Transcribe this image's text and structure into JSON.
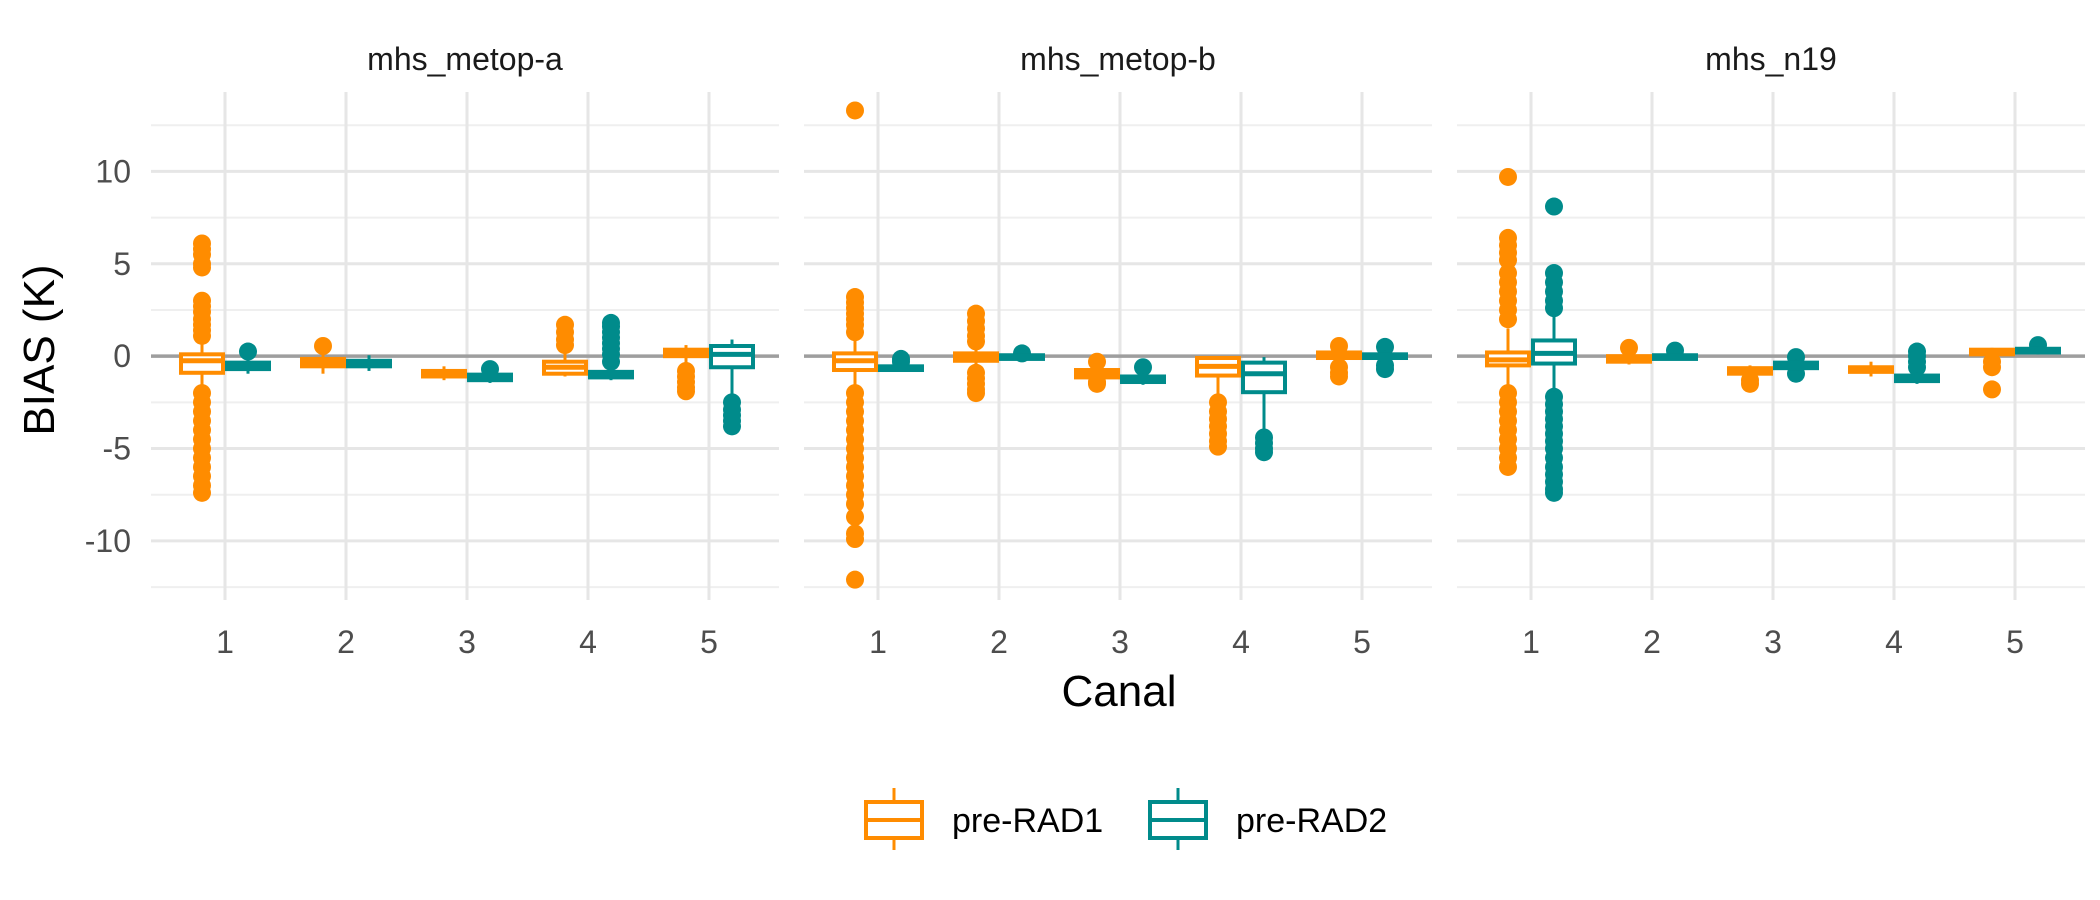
{
  "chart_data": {
    "type": "box",
    "xlabel": "Canal",
    "ylabel": "BIAS (K)",
    "ylim": [
      -13.2,
      14.3
    ],
    "y_ticks": [
      10,
      5,
      0,
      -5,
      -10
    ],
    "y_tick_labels": [
      "10",
      "5",
      "0",
      "-5",
      "-10"
    ],
    "categories": [
      "1",
      "2",
      "3",
      "4",
      "5"
    ],
    "reference_line": 0,
    "grid": true,
    "legend_position": "bottom",
    "colors": {
      "pre-RAD1": "#FF8C00",
      "pre-RAD2": "#008B8B",
      "zero_line": "#9e9e9e"
    },
    "series_names": [
      "pre-RAD1",
      "pre-RAD2"
    ],
    "panels": [
      {
        "title": "mhs_metop-a",
        "series": [
          {
            "name": "pre-RAD1",
            "boxes": [
              {
                "category": "1",
                "q1": -0.9,
                "median": -0.25,
                "q3": 0.1,
                "whisker_low": -1.9,
                "whisker_high": 1.0,
                "outliers": [
                  6.1,
                  5.8,
                  5.5,
                  5.0,
                  4.8,
                  3.0,
                  2.7,
                  2.4,
                  2.0,
                  1.7,
                  1.4,
                  1.1,
                  -2.0,
                  -2.5,
                  -3.0,
                  -3.5,
                  -4.0,
                  -4.5,
                  -5.0,
                  -5.5,
                  -6.0,
                  -6.5,
                  -7.0,
                  -7.4
                ]
              },
              {
                "category": "2",
                "q1": -0.55,
                "median": -0.35,
                "q3": -0.15,
                "whisker_low": -0.95,
                "whisker_high": 0.2,
                "outliers": [
                  0.55
                ]
              },
              {
                "category": "3",
                "q1": -1.1,
                "median": -0.95,
                "q3": -0.8,
                "whisker_low": -1.3,
                "whisker_high": -0.55,
                "outliers": []
              },
              {
                "category": "4",
                "q1": -0.95,
                "median": -0.6,
                "q3": -0.3,
                "whisker_low": -1.1,
                "whisker_high": 0.2,
                "outliers": [
                  0.6,
                  0.9,
                  1.3,
                  1.7
                ]
              },
              {
                "category": "5",
                "q1": 0.0,
                "median": 0.2,
                "q3": 0.35,
                "whisker_low": -0.5,
                "whisker_high": 0.6,
                "outliers": [
                  -0.8,
                  -1.1,
                  -1.4,
                  -1.7,
                  -1.9
                ]
              }
            ]
          },
          {
            "name": "pre-RAD2",
            "boxes": [
              {
                "category": "1",
                "q1": -0.7,
                "median": -0.55,
                "q3": -0.35,
                "whisker_low": -0.95,
                "whisker_high": -0.1,
                "outliers": [
                  0.25
                ]
              },
              {
                "category": "2",
                "q1": -0.55,
                "median": -0.4,
                "q3": -0.25,
                "whisker_low": -0.8,
                "whisker_high": 0.05,
                "outliers": []
              },
              {
                "category": "3",
                "q1": -1.3,
                "median": -1.15,
                "q3": -1.0,
                "whisker_low": -1.45,
                "whisker_high": -0.85,
                "outliers": [
                  -0.7
                ]
              },
              {
                "category": "4",
                "q1": -1.15,
                "median": -1.0,
                "q3": -0.85,
                "whisker_low": -1.3,
                "whisker_high": -0.55,
                "outliers": [
                  -0.3,
                  0.1,
                  0.4,
                  0.7,
                  1.0,
                  1.3,
                  1.6,
                  1.8
                ]
              },
              {
                "category": "5",
                "q1": -0.6,
                "median": 0.1,
                "q3": 0.55,
                "whisker_low": -2.1,
                "whisker_high": 0.9,
                "outliers": [
                  -2.5,
                  -2.9,
                  -3.2,
                  -3.5,
                  -3.8
                ]
              }
            ]
          }
        ]
      },
      {
        "title": "mhs_metop-b",
        "series": [
          {
            "name": "pre-RAD1",
            "boxes": [
              {
                "category": "1",
                "q1": -0.75,
                "median": -0.25,
                "q3": 0.15,
                "whisker_low": -1.8,
                "whisker_high": 1.0,
                "outliers": [
                  13.3,
                  3.2,
                  2.9,
                  2.6,
                  2.3,
                  2.0,
                  1.7,
                  1.3,
                  -2.0,
                  -2.5,
                  -3.0,
                  -3.5,
                  -4.0,
                  -4.5,
                  -5.0,
                  -5.5,
                  -6.0,
                  -6.5,
                  -7.0,
                  -7.5,
                  -8.0,
                  -8.7,
                  -9.6,
                  -9.9,
                  -12.1
                ]
              },
              {
                "category": "2",
                "q1": -0.25,
                "median": -0.05,
                "q3": 0.15,
                "whisker_low": -0.7,
                "whisker_high": 0.6,
                "outliers": [
                  2.3,
                  1.9,
                  1.5,
                  1.1,
                  0.8,
                  -0.9,
                  -1.2,
                  -1.5,
                  -1.8,
                  -2.0
                ]
              },
              {
                "category": "3",
                "q1": -1.15,
                "median": -0.95,
                "q3": -0.75,
                "whisker_low": -1.3,
                "whisker_high": -0.5,
                "outliers": [
                  -0.3,
                  -1.4,
                  -1.5
                ]
              },
              {
                "category": "4",
                "q1": -1.05,
                "median": -0.55,
                "q3": -0.1,
                "whisker_low": -2.2,
                "whisker_high": 0.0,
                "outliers": [
                  -2.5,
                  -3.0,
                  -3.4,
                  -3.8,
                  -4.2,
                  -4.6,
                  -4.9
                ]
              },
              {
                "category": "5",
                "q1": -0.1,
                "median": 0.05,
                "q3": 0.2,
                "whisker_low": -0.3,
                "whisker_high": 0.4,
                "outliers": [
                  0.55,
                  -0.6,
                  -0.9,
                  -1.1
                ]
              }
            ]
          },
          {
            "name": "pre-RAD2",
            "boxes": [
              {
                "category": "1",
                "q1": -0.75,
                "median": -0.65,
                "q3": -0.55,
                "whisker_low": -0.8,
                "whisker_high": -0.4,
                "outliers": [
                  -0.15,
                  -0.3
                ]
              },
              {
                "category": "2",
                "q1": -0.15,
                "median": -0.05,
                "q3": 0.05,
                "whisker_low": -0.2,
                "whisker_high": 0.1,
                "outliers": [
                  0.15
                ]
              },
              {
                "category": "3",
                "q1": -1.4,
                "median": -1.25,
                "q3": -1.1,
                "whisker_low": -1.55,
                "whisker_high": -0.95,
                "outliers": [
                  -0.6
                ]
              },
              {
                "category": "4",
                "q1": -1.95,
                "median": -0.95,
                "q3": -0.35,
                "whisker_low": -4.1,
                "whisker_high": -0.05,
                "outliers": [
                  -4.4,
                  -4.7,
                  -5.0,
                  -5.2
                ]
              },
              {
                "category": "5",
                "q1": -0.1,
                "median": 0.0,
                "q3": 0.1,
                "whisker_low": -0.25,
                "whisker_high": 0.3,
                "outliers": [
                  0.5,
                  -0.5,
                  -0.7
                ]
              }
            ]
          }
        ]
      },
      {
        "title": "mhs_n19",
        "series": [
          {
            "name": "pre-RAD1",
            "boxes": [
              {
                "category": "1",
                "q1": -0.5,
                "median": -0.2,
                "q3": 0.2,
                "whisker_low": -1.8,
                "whisker_high": 1.5,
                "outliers": [
                  9.7,
                  6.4,
                  6.0,
                  5.6,
                  5.2,
                  4.5,
                  4.0,
                  3.5,
                  3.0,
                  2.5,
                  2.0,
                  -2.0,
                  -2.5,
                  -3.0,
                  -3.5,
                  -4.0,
                  -4.5,
                  -5.0,
                  -5.5,
                  -6.0
                ]
              },
              {
                "category": "2",
                "q1": -0.3,
                "median": -0.15,
                "q3": 0.0,
                "whisker_low": -0.45,
                "whisker_high": 0.2,
                "outliers": [
                  0.45
                ]
              },
              {
                "category": "3",
                "q1": -0.95,
                "median": -0.8,
                "q3": -0.65,
                "whisker_low": -1.1,
                "whisker_high": -0.5,
                "outliers": [
                  -1.3,
                  -1.5
                ]
              },
              {
                "category": "4",
                "q1": -0.85,
                "median": -0.75,
                "q3": -0.6,
                "whisker_low": -1.1,
                "whisker_high": -0.3,
                "outliers": []
              },
              {
                "category": "5",
                "q1": 0.1,
                "median": 0.25,
                "q3": 0.35,
                "whisker_low": -0.1,
                "whisker_high": 0.45,
                "outliers": [
                  -0.3,
                  -0.6,
                  -1.8
                ]
              }
            ]
          },
          {
            "name": "pre-RAD2",
            "boxes": [
              {
                "category": "1",
                "q1": -0.4,
                "median": 0.15,
                "q3": 0.85,
                "whisker_low": -1.9,
                "whisker_high": 2.2,
                "outliers": [
                  8.1,
                  4.5,
                  4.0,
                  3.5,
                  3.0,
                  2.6,
                  -2.2,
                  -2.6,
                  -3.0,
                  -3.4,
                  -3.8,
                  -4.2,
                  -4.6,
                  -5.0,
                  -5.5,
                  -6.0,
                  -6.4,
                  -6.8,
                  -7.2,
                  -7.4
                ]
              },
              {
                "category": "2",
                "q1": -0.15,
                "median": -0.05,
                "q3": 0.05,
                "whisker_low": -0.2,
                "whisker_high": 0.15,
                "outliers": [
                  0.3
                ]
              },
              {
                "category": "3",
                "q1": -0.65,
                "median": -0.5,
                "q3": -0.35,
                "whisker_low": -0.8,
                "whisker_high": -0.2,
                "outliers": [
                  -0.95,
                  -0.05
                ]
              },
              {
                "category": "4",
                "q1": -1.35,
                "median": -1.2,
                "q3": -1.05,
                "whisker_low": -1.5,
                "whisker_high": -0.9,
                "outliers": [
                  -0.6,
                  -0.3,
                  0.0,
                  0.25
                ]
              },
              {
                "category": "5",
                "q1": 0.2,
                "median": 0.3,
                "q3": 0.4,
                "whisker_low": 0.1,
                "whisker_high": 0.5,
                "outliers": [
                  0.6
                ]
              }
            ]
          }
        ]
      }
    ]
  }
}
